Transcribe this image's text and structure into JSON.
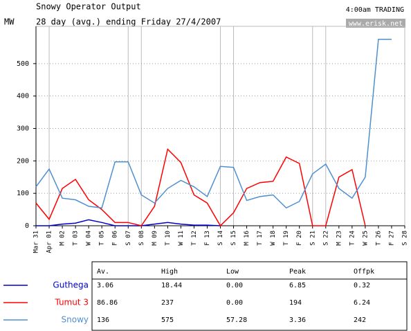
{
  "chart_data": {
    "type": "line",
    "title": "Snowy Operator Output",
    "subtitle": "28 day (avg.) ending Friday 27/4/2007",
    "ylabel": "MW",
    "status": "4:00am TRADING",
    "source": "www.erisk.net",
    "categories": [
      "Mar 31",
      "Apr 01",
      "M 02",
      "T 03",
      "W 04",
      "T 05",
      "F 06",
      "S 07",
      "S 08",
      "M 09",
      "T 10",
      "W 11",
      "T 12",
      "F 13",
      "S 14",
      "S 15",
      "M 16",
      "T 17",
      "W 18",
      "T 19",
      "F 20",
      "S 21",
      "S 22",
      "M 23",
      "T 24",
      "W 25",
      "T 26",
      "F 27",
      "S 28"
    ],
    "series": [
      {
        "name": "Guthega",
        "color": "#0000cc",
        "values": [
          0,
          0,
          5,
          8,
          18.44,
          10,
          0,
          0,
          0,
          5,
          10,
          5,
          2,
          2,
          0,
          null,
          null,
          null,
          null,
          null,
          null,
          null,
          null,
          null,
          null,
          null,
          null,
          null,
          null
        ]
      },
      {
        "name": "Tumut 3",
        "color": "#ff0000",
        "values": [
          70,
          20,
          115,
          143,
          80,
          50,
          10,
          10,
          0,
          60,
          236,
          195,
          95,
          70,
          0,
          40,
          115,
          133,
          137,
          212,
          192,
          0,
          0,
          150,
          173,
          0,
          null,
          null,
          null
        ]
      },
      {
        "name": "Snowy",
        "color": "#4f8fd0",
        "values": [
          120,
          175,
          85,
          80,
          60,
          55,
          197,
          197,
          95,
          70,
          115,
          140,
          120,
          90,
          183,
          180,
          78,
          90,
          95,
          55,
          75,
          160,
          190,
          115,
          85,
          150,
          575,
          575,
          null
        ]
      }
    ],
    "ylim": [
      0,
      615
    ],
    "yticks": [
      0,
      100,
      200,
      300,
      400,
      500
    ],
    "grid": true,
    "table": {
      "columns": [
        "Av.",
        "High",
        "Low",
        "Peak",
        "Offpk"
      ],
      "rows": [
        [
          "3.06",
          "18.44",
          "0.00",
          "6.85",
          "0.32"
        ],
        [
          "86.86",
          "237",
          "0.00",
          "194",
          "6.24"
        ],
        [
          "136",
          "575",
          "57.28",
          "3.36",
          "242"
        ]
      ]
    }
  }
}
